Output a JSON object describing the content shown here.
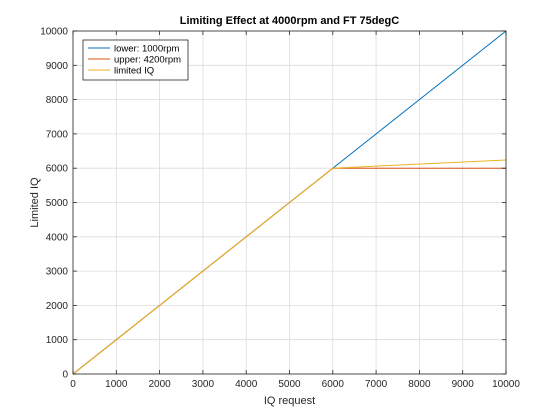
{
  "chart_data": {
    "type": "line",
    "title": "Limiting Effect at 4000rpm and FT 75degC",
    "xlabel": "IQ request",
    "ylabel": "Limited IQ",
    "xlim": [
      0,
      10000
    ],
    "ylim": [
      0,
      10000
    ],
    "xticks": [
      "0",
      "1000",
      "2000",
      "3000",
      "4000",
      "5000",
      "6000",
      "7000",
      "8000",
      "9000",
      "10000"
    ],
    "yticks": [
      "0",
      "1000",
      "2000",
      "3000",
      "4000",
      "5000",
      "6000",
      "7000",
      "8000",
      "9000",
      "10000"
    ],
    "grid": true,
    "legend_position": "top-left",
    "series": [
      {
        "name": "lower: 1000rpm",
        "color": "#0072BD",
        "x": [
          0,
          10000
        ],
        "y": [
          0,
          10000
        ]
      },
      {
        "name": "upper: 4200rpm",
        "color": "#D95319",
        "x": [
          0,
          6000,
          10000
        ],
        "y": [
          0,
          6000,
          6000
        ]
      },
      {
        "name": "limited IQ",
        "color": "#EDB120",
        "x": [
          0,
          6000,
          10000
        ],
        "y": [
          0,
          6000,
          6240
        ]
      }
    ]
  }
}
